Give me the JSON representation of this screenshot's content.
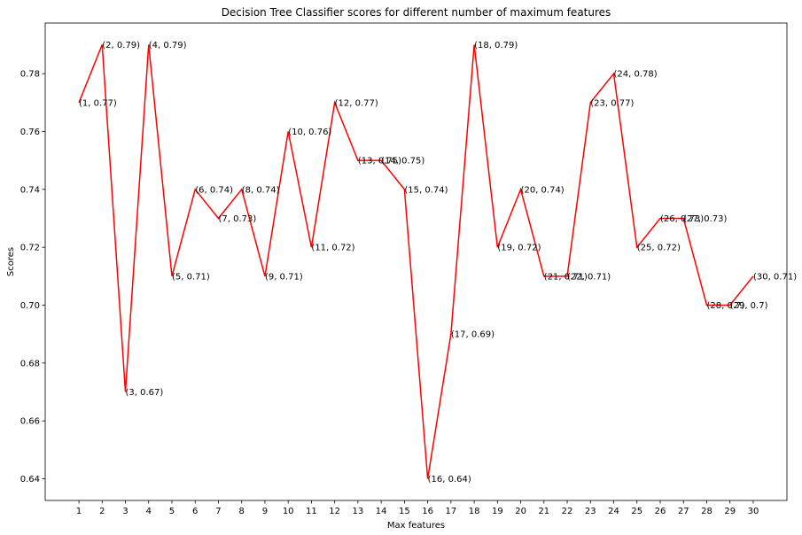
{
  "chart_data": {
    "type": "line",
    "title": "Decision Tree Classifier scores for different number of maximum features",
    "xlabel": "Max features",
    "ylabel": "Scores",
    "x": [
      1,
      2,
      3,
      4,
      5,
      6,
      7,
      8,
      9,
      10,
      11,
      12,
      13,
      14,
      15,
      16,
      17,
      18,
      19,
      20,
      21,
      22,
      23,
      24,
      25,
      26,
      27,
      28,
      29,
      30
    ],
    "series": [
      {
        "values": [
          0.77,
          0.79,
          0.67,
          0.79,
          0.71,
          0.74,
          0.73,
          0.74,
          0.71,
          0.76,
          0.72,
          0.77,
          0.75,
          0.75,
          0.74,
          0.64,
          0.69,
          0.79,
          0.72,
          0.74,
          0.71,
          0.71,
          0.77,
          0.78,
          0.72,
          0.73,
          0.73,
          0.7,
          0.7,
          0.71
        ],
        "color": "#ff0000"
      }
    ],
    "point_labels": [
      "(1, 0.77)",
      "(2, 0.79)",
      "(3, 0.67)",
      "(4, 0.79)",
      "(5, 0.71)",
      "(6, 0.74)",
      "(7, 0.73)",
      "(8, 0.74)",
      "(9, 0.71)",
      "(10, 0.76)",
      "(11, 0.72)",
      "(12, 0.77)",
      "(13, 0.75)",
      "(14, 0.75)",
      "(15, 0.74)",
      "(16, 0.64)",
      "(17, 0.69)",
      "(18, 0.79)",
      "(19, 0.72)",
      "(20, 0.74)",
      "(21, 0.71)",
      "(22, 0.71)",
      "(23, 0.77)",
      "(24, 0.78)",
      "(25, 0.72)",
      "(26, 0.73)",
      "(27, 0.73)",
      "(28, 0.7)",
      "(29, 0.7)",
      "(30, 0.71)"
    ],
    "xticks": [
      1,
      2,
      3,
      4,
      5,
      6,
      7,
      8,
      9,
      10,
      11,
      12,
      13,
      14,
      15,
      16,
      17,
      18,
      19,
      20,
      21,
      22,
      23,
      24,
      25,
      26,
      27,
      28,
      29,
      30
    ],
    "yticks": [
      "0.64",
      "0.66",
      "0.68",
      "0.70",
      "0.72",
      "0.74",
      "0.76",
      "0.78"
    ],
    "xlim": [
      -0.45,
      31.45
    ],
    "ylim": [
      0.6325,
      0.7975
    ],
    "grid": false,
    "legend": "none"
  }
}
